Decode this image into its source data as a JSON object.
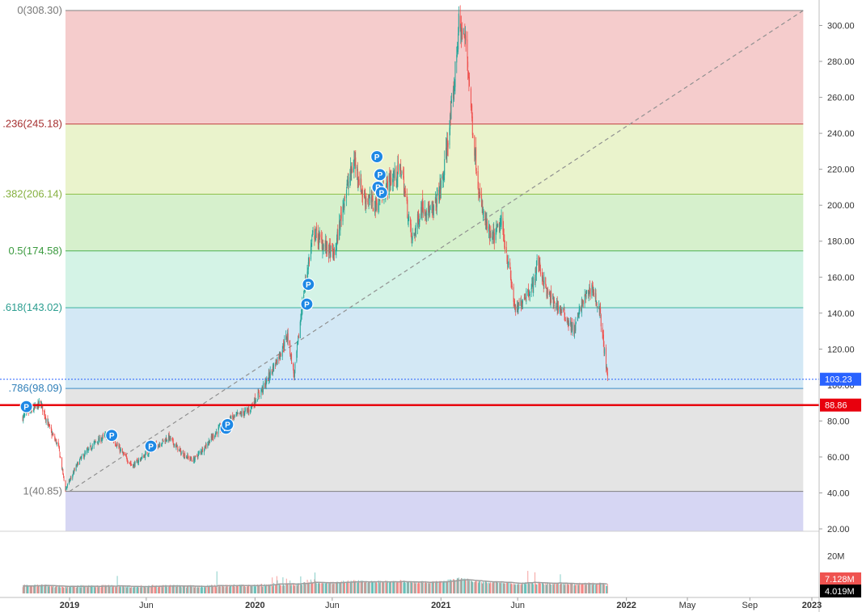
{
  "chart_data": {
    "type": "candlestick",
    "title": "",
    "xlabel": "",
    "ylabel": "",
    "ylim": [
      18,
      318
    ],
    "grid": false,
    "x_range": [
      "2018-10-01",
      "2023-01-31"
    ],
    "y_ticks": [
      20,
      40,
      60,
      80,
      100,
      120,
      140,
      160,
      180,
      200,
      220,
      240,
      260,
      280,
      300
    ],
    "y_tick_labels": [
      "20.00",
      "40.00",
      "60.00",
      "80.00",
      "100.00",
      "120.00",
      "140.00",
      "160.00",
      "180.00",
      "200.00",
      "220.00",
      "240.00",
      "260.00",
      "280.00",
      "300.00"
    ],
    "x_ticks": [
      {
        "date": "2019-01-01",
        "label": "2019",
        "bold": true
      },
      {
        "date": "2019-06-01",
        "label": "Jun",
        "bold": false
      },
      {
        "date": "2020-01-01",
        "label": "2020",
        "bold": true
      },
      {
        "date": "2020-06-01",
        "label": "Jun",
        "bold": false
      },
      {
        "date": "2021-01-01",
        "label": "2021",
        "bold": true
      },
      {
        "date": "2021-06-01",
        "label": "Jun",
        "bold": false
      },
      {
        "date": "2022-01-01",
        "label": "2022",
        "bold": true
      },
      {
        "date": "2022-05-01",
        "label": "May",
        "bold": false
      },
      {
        "date": "2022-09-01",
        "label": "Sep",
        "bold": false
      },
      {
        "date": "2023-01-01",
        "label": "2023",
        "bold": true
      }
    ],
    "fib_retracement": {
      "start_date": "2018-12-24",
      "end_date": "2022-12-15",
      "levels": [
        {
          "ratio": 0,
          "price": 308.3,
          "label": "0(308.30)",
          "line": "#808080",
          "fill": "#f5cccc",
          "text": "#787878"
        },
        {
          "ratio": 0.236,
          "price": 245.18,
          "label": ".236(245.18)",
          "line": "#c24040",
          "fill": "#eaf3cc",
          "text": "#a63030"
        },
        {
          "ratio": 0.382,
          "price": 206.14,
          "label": ".382(206.14)",
          "line": "#8fc04a",
          "fill": "#d6f0cc",
          "text": "#86b040"
        },
        {
          "ratio": 0.5,
          "price": 174.58,
          "label": "0.5(174.58)",
          "line": "#4caf50",
          "fill": "#d4f3e6",
          "text": "#3a9a3e"
        },
        {
          "ratio": 0.618,
          "price": 143.02,
          "label": ".618(143.02)",
          "line": "#3bb2a0",
          "fill": "#d3e8f5",
          "text": "#2a9d8f"
        },
        {
          "ratio": 0.786,
          "price": 98.09,
          "label": ".786(98.09)",
          "line": "#3d8fc6",
          "fill": "#e4e4e4",
          "text": "#2f7fb8"
        },
        {
          "ratio": 1,
          "price": 40.85,
          "label": "1(40.85)",
          "line": "#808080",
          "fill": "#d6d6f3",
          "text": "#787878"
        }
      ],
      "trend_line": {
        "from": {
          "date": "2019-01-01",
          "price": 40.85
        },
        "to": {
          "date": "2022-12-15",
          "price": 308.3
        }
      }
    },
    "horizontal_line": {
      "price": 88.86,
      "label": "88.86",
      "color": "#e8000d"
    },
    "last_price": {
      "price": 103.23,
      "label": "103.23",
      "color": "#2962ff"
    },
    "price_path": [
      {
        "date": "2018-10-01",
        "close": 82
      },
      {
        "date": "2018-10-20",
        "close": 86
      },
      {
        "date": "2018-11-05",
        "close": 90
      },
      {
        "date": "2018-11-25",
        "close": 74
      },
      {
        "date": "2018-12-10",
        "close": 66
      },
      {
        "date": "2018-12-24",
        "close": 42
      },
      {
        "date": "2019-01-20",
        "close": 58
      },
      {
        "date": "2019-02-20",
        "close": 68
      },
      {
        "date": "2019-03-20",
        "close": 73
      },
      {
        "date": "2019-04-15",
        "close": 62
      },
      {
        "date": "2019-05-05",
        "close": 55
      },
      {
        "date": "2019-05-25",
        "close": 60
      },
      {
        "date": "2019-06-20",
        "close": 66
      },
      {
        "date": "2019-07-15",
        "close": 71
      },
      {
        "date": "2019-08-10",
        "close": 62
      },
      {
        "date": "2019-09-01",
        "close": 58
      },
      {
        "date": "2019-09-25",
        "close": 66
      },
      {
        "date": "2019-10-20",
        "close": 75
      },
      {
        "date": "2019-11-20",
        "close": 82
      },
      {
        "date": "2019-12-20",
        "close": 86
      },
      {
        "date": "2020-01-20",
        "close": 100
      },
      {
        "date": "2020-02-20",
        "close": 118
      },
      {
        "date": "2020-03-05",
        "close": 128
      },
      {
        "date": "2020-03-18",
        "close": 105
      },
      {
        "date": "2020-04-05",
        "close": 150
      },
      {
        "date": "2020-04-25",
        "close": 185
      },
      {
        "date": "2020-05-15",
        "close": 178
      },
      {
        "date": "2020-06-05",
        "close": 172
      },
      {
        "date": "2020-06-25",
        "close": 205
      },
      {
        "date": "2020-07-15",
        "close": 225
      },
      {
        "date": "2020-08-01",
        "close": 205
      },
      {
        "date": "2020-08-25",
        "close": 200
      },
      {
        "date": "2020-09-20",
        "close": 213
      },
      {
        "date": "2020-10-15",
        "close": 220
      },
      {
        "date": "2020-11-05",
        "close": 180
      },
      {
        "date": "2020-11-25",
        "close": 200
      },
      {
        "date": "2020-12-15",
        "close": 195
      },
      {
        "date": "2021-01-05",
        "close": 215
      },
      {
        "date": "2021-01-25",
        "close": 260
      },
      {
        "date": "2021-02-05",
        "close": 300
      },
      {
        "date": "2021-02-20",
        "close": 290
      },
      {
        "date": "2021-03-05",
        "close": 240
      },
      {
        "date": "2021-03-20",
        "close": 200
      },
      {
        "date": "2021-04-10",
        "close": 180
      },
      {
        "date": "2021-04-30",
        "close": 190
      },
      {
        "date": "2021-05-15",
        "close": 165
      },
      {
        "date": "2021-05-28",
        "close": 140
      },
      {
        "date": "2021-06-15",
        "close": 150
      },
      {
        "date": "2021-07-01",
        "close": 155
      },
      {
        "date": "2021-07-10",
        "close": 170
      },
      {
        "date": "2021-07-30",
        "close": 150
      },
      {
        "date": "2021-08-30",
        "close": 140
      },
      {
        "date": "2021-09-20",
        "close": 130
      },
      {
        "date": "2021-10-05",
        "close": 145
      },
      {
        "date": "2021-10-25",
        "close": 155
      },
      {
        "date": "2021-11-10",
        "close": 140
      },
      {
        "date": "2021-11-25",
        "close": 103
      }
    ],
    "volume": {
      "tick_labels": [
        {
          "value": 20,
          "label": "20M"
        }
      ],
      "ylim": [
        0,
        28
      ],
      "last_volume": {
        "value": 7.128,
        "label": "7.128M",
        "color": "#ef5350"
      },
      "ma_volume": {
        "value": 4.019,
        "label": "4.019M",
        "color": "#000000"
      }
    },
    "p_markers": [
      {
        "date": "2018-10-08",
        "price": 88
      },
      {
        "date": "2019-03-25",
        "price": 72
      },
      {
        "date": "2019-06-10",
        "price": 66
      },
      {
        "date": "2019-11-05",
        "price": 76
      },
      {
        "date": "2019-11-08",
        "price": 78
      },
      {
        "date": "2020-04-12",
        "price": 145
      },
      {
        "date": "2020-04-15",
        "price": 156
      },
      {
        "date": "2020-08-28",
        "price": 227
      },
      {
        "date": "2020-09-03",
        "price": 217
      },
      {
        "date": "2020-08-30",
        "price": 210
      },
      {
        "date": "2020-09-06",
        "price": 207
      }
    ]
  }
}
